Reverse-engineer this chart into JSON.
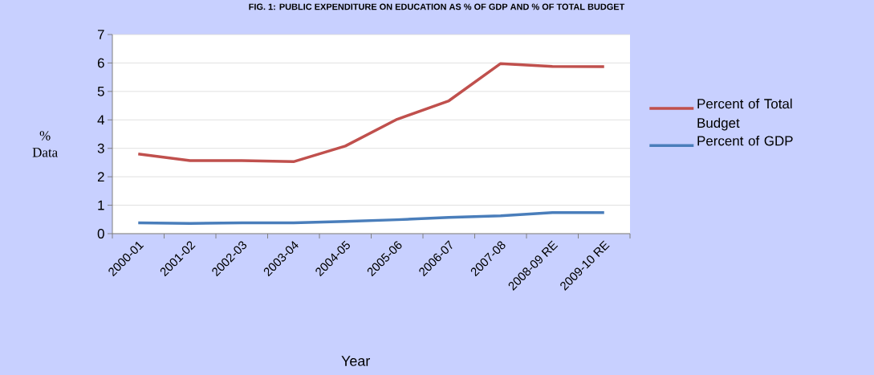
{
  "chart_data": {
    "type": "line",
    "title": "FIG. 1: PUBLIC EXPENDITURE ON EDUCATION AS % OF GDP AND % OF TOTAL BUDGET",
    "xlabel": "Year",
    "ylabel": "% Data",
    "categories": [
      "2000-01",
      "2001-02",
      "2002-03",
      "2003-04",
      "2004-05",
      "2005-06",
      "2006-07",
      "2007-08",
      "2008-09 RE",
      "2009-10 RE"
    ],
    "series": [
      {
        "name": "Percent of Total Budget",
        "color": "#c0504d",
        "values": [
          2.8,
          2.57,
          2.57,
          2.53,
          3.08,
          4.02,
          4.67,
          5.98,
          5.88,
          5.87
        ]
      },
      {
        "name": "Percent of GDP",
        "color": "#4a7ebb",
        "values": [
          0.38,
          0.36,
          0.38,
          0.38,
          0.43,
          0.49,
          0.57,
          0.63,
          0.74,
          0.74
        ]
      }
    ],
    "ylim": [
      0,
      7
    ],
    "yticks": [
      0,
      1,
      2,
      3,
      4,
      5,
      6,
      7
    ],
    "grid": "y",
    "legend": "right",
    "marker": "none",
    "line_style": "solid"
  }
}
